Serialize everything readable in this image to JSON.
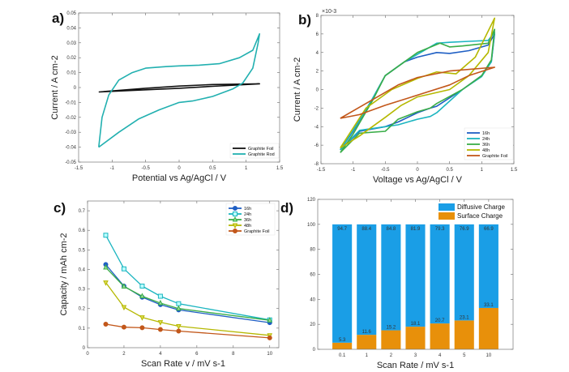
{
  "chart_data": [
    {
      "panel": "a)",
      "type": "line",
      "xlabel": "Potential vs Ag/AgCl / V",
      "ylabel": "Current / A cm-2",
      "xlim": [
        -1.5,
        1.5
      ],
      "ylim": [
        -0.05,
        0.05
      ],
      "xticks": [
        -1.5,
        -1,
        -0.5,
        0,
        0.5,
        1,
        1.5
      ],
      "yticks": [
        -0.05,
        -0.04,
        -0.03,
        -0.02,
        -0.01,
        0,
        0.01,
        0.02,
        0.03,
        0.04,
        0.05
      ],
      "legend": "bottom-right",
      "series": [
        {
          "name": "Graphite Foil",
          "color": "#111111",
          "x": [
            -1.2,
            -0.5,
            0,
            0.5,
            1.2,
            0.5,
            0,
            -0.5,
            -1.2
          ],
          "y": [
            -0.003,
            -0.0005,
            0.001,
            0.002,
            0.0025,
            0.0008,
            -0.0005,
            -0.0015,
            -0.003
          ]
        },
        {
          "name": "Graphite Rod",
          "color": "#22b0b0",
          "x": [
            -1.2,
            -1.15,
            -1.05,
            -0.9,
            -0.7,
            -0.5,
            -0.2,
            0,
            0.3,
            0.6,
            0.9,
            1.1,
            1.2,
            1.18,
            1.1,
            0.95,
            0.8,
            0.5,
            0.2,
            0,
            -0.3,
            -0.6,
            -0.9,
            -1.2
          ],
          "y": [
            -0.04,
            -0.02,
            -0.005,
            0.005,
            0.01,
            0.013,
            0.014,
            0.0145,
            0.015,
            0.016,
            0.02,
            0.025,
            0.036,
            0.03,
            0.013,
            0.003,
            -0.001,
            -0.006,
            -0.009,
            -0.01,
            -0.015,
            -0.021,
            -0.03,
            -0.04
          ]
        }
      ]
    },
    {
      "panel": "b)",
      "type": "line",
      "xlabel": "Voltage vs Ag/AgCl / V",
      "ylabel": "Current / A cm-2",
      "y_multiplier": "×10-3",
      "xlim": [
        -1.5,
        1.5
      ],
      "ylim": [
        -8,
        8
      ],
      "xticks": [
        -1.5,
        -1,
        -0.5,
        0,
        0.5,
        1,
        1.5
      ],
      "yticks": [
        -8,
        -6,
        -4,
        -2,
        0,
        2,
        4,
        6,
        8
      ],
      "legend": "bottom-right",
      "series": [
        {
          "name": "16h",
          "color": "#1f5fc4",
          "x": [
            -1.2,
            -1,
            -0.7,
            -0.5,
            -0.2,
            0,
            0.3,
            0.5,
            0.8,
            1.1,
            1.2,
            1.15,
            1,
            0.7,
            0.3,
            0.2,
            0,
            -0.3,
            -0.5,
            -0.9,
            -1.2
          ],
          "y": [
            -6.5,
            -4.5,
            -1,
            1.5,
            3,
            3.5,
            4,
            3.9,
            4.2,
            4.8,
            6,
            3,
            1.5,
            0,
            -1.8,
            -2,
            -2.5,
            -3.5,
            -4,
            -4.5,
            -6.5
          ]
        },
        {
          "name": "24h",
          "color": "#1bb5c0",
          "x": [
            -1.2,
            -1,
            -0.7,
            -0.5,
            -0.2,
            0,
            0.3,
            0.5,
            0.8,
            1.1,
            1.2,
            1.15,
            1,
            0.7,
            0.3,
            0.2,
            0,
            -0.3,
            -0.5,
            -0.9,
            -1.2
          ],
          "y": [
            -6.5,
            -4.4,
            -1,
            1.5,
            3,
            3.8,
            5,
            5.1,
            5.2,
            5.3,
            6.2,
            3,
            1.4,
            0,
            -2.5,
            -2.9,
            -3.2,
            -3.8,
            -4,
            -4.4,
            -6.5
          ]
        },
        {
          "name": "36h",
          "color": "#3aad48",
          "x": [
            -1.2,
            -1,
            -0.7,
            -0.5,
            -0.2,
            0,
            0.35,
            0.5,
            0.7,
            1.1,
            1.2,
            1.15,
            1,
            0.7,
            0.3,
            0.2,
            0,
            -0.3,
            -0.5,
            -0.9,
            -1.2
          ],
          "y": [
            -6.8,
            -4.8,
            -1.2,
            1.5,
            3,
            4,
            5,
            4.6,
            4.7,
            5,
            6.5,
            3.2,
            1.5,
            0,
            -1.5,
            -2,
            -2.4,
            -3.2,
            -4.5,
            -4.7,
            -6.8
          ]
        },
        {
          "name": "48h",
          "color": "#b5b800",
          "x": [
            -1.2,
            -0.8,
            -0.4,
            0,
            0.3,
            0.6,
            0.9,
            1.2,
            1.1,
            0.8,
            0.5,
            0,
            -0.25,
            -0.5,
            -0.9,
            -1.2
          ],
          "y": [
            -6.3,
            -2,
            0,
            1.2,
            1.9,
            1.7,
            3.5,
            7.7,
            4,
            1.5,
            0,
            -0.8,
            -1.7,
            -3,
            -5,
            -6.3
          ]
        },
        {
          "name": "Graphite Foil",
          "color": "#c2571a",
          "x": [
            -1.2,
            -0.8,
            -0.3,
            0,
            0.5,
            1.2,
            0.8,
            0.5,
            0,
            -0.5,
            -0.9,
            -1.2
          ],
          "y": [
            -3.1,
            -1.5,
            0.5,
            1.3,
            2,
            2.4,
            1.5,
            0.5,
            -0.6,
            -1.7,
            -2.7,
            -3.1
          ]
        }
      ]
    },
    {
      "panel": "c)",
      "type": "line",
      "xlabel": "Scan Rate v / mV s-1",
      "ylabel": "Capacity / mAh cm-2",
      "xlim": [
        0,
        10.5
      ],
      "ylim": [
        0,
        0.75
      ],
      "xticks": [
        0,
        2,
        4,
        6,
        8,
        10
      ],
      "yticks": [
        0,
        0.1,
        0.2,
        0.3,
        0.4,
        0.5,
        0.6,
        0.7
      ],
      "legend": "top-right",
      "x": [
        1,
        2,
        3,
        4,
        5,
        10
      ],
      "series": [
        {
          "name": "16h",
          "color": "#1f5fc4",
          "marker": "circle",
          "values": [
            0.425,
            0.315,
            0.258,
            0.22,
            0.193,
            0.128
          ]
        },
        {
          "name": "24h",
          "color": "#1bb5c0",
          "marker": "square",
          "values": [
            0.575,
            0.403,
            0.315,
            0.263,
            0.225,
            0.142
          ]
        },
        {
          "name": "36h",
          "color": "#3aad48",
          "marker": "triangle-up",
          "values": [
            0.41,
            0.313,
            0.263,
            0.228,
            0.2,
            0.14
          ]
        },
        {
          "name": "48h",
          "color": "#b5b800",
          "marker": "triangle-down",
          "values": [
            0.333,
            0.207,
            0.155,
            0.13,
            0.11,
            0.063
          ]
        },
        {
          "name": "Graphite Foil",
          "color": "#c2571a",
          "marker": "circle",
          "values": [
            0.12,
            0.105,
            0.102,
            0.093,
            0.085,
            0.05
          ]
        }
      ]
    },
    {
      "panel": "d)",
      "type": "bar",
      "stacked": true,
      "xlabel": "Scan Rate / mV s-1",
      "ylabel": "",
      "ylim": [
        0,
        120
      ],
      "yticks": [
        0,
        20,
        40,
        60,
        80,
        100,
        120
      ],
      "legend": "top-right",
      "categories": [
        "0.1",
        "1",
        "2",
        "3",
        "4",
        "5",
        "10"
      ],
      "series": [
        {
          "name": "Surface Charge",
          "color": "#e8900a",
          "values": [
            5.3,
            11.6,
            15.2,
            18.1,
            20.7,
            23.1,
            33.1
          ]
        },
        {
          "name": "Diffusive Charge",
          "color": "#1a9ee6",
          "values": [
            94.7,
            88.4,
            84.8,
            81.9,
            79.3,
            76.9,
            66.9
          ]
        }
      ]
    }
  ]
}
